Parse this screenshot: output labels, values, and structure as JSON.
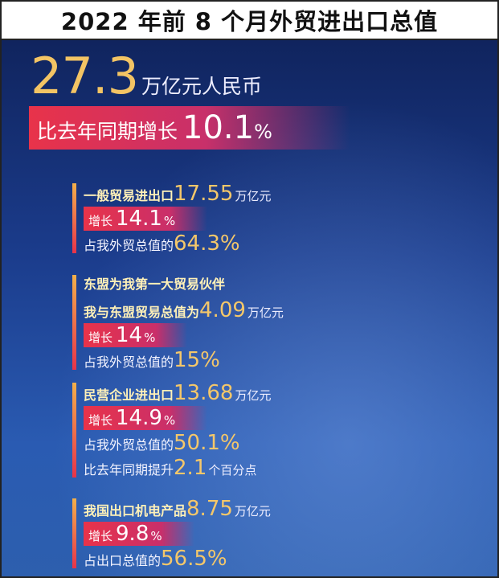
{
  "header": {
    "title": "2022 年前 8 个月外贸进出口总值"
  },
  "total": {
    "value": "27.3",
    "unit": "万亿元人民币",
    "growth_label": "比去年同期增长",
    "growth": "10.1",
    "growth_unit": "%"
  },
  "sections": [
    {
      "lines": [
        [
          "一般贸易进出口",
          "17.55",
          "万亿元"
        ],
        [
          "增长",
          "14.1",
          "%"
        ],
        [
          "占我外贸总值的",
          "64.3%"
        ]
      ]
    },
    {
      "lines": [
        [
          "东盟为我第一大贸易伙伴"
        ],
        [
          "我与东盟贸易总值为",
          "4.09",
          "万亿元"
        ],
        [
          "增长",
          "14",
          "%"
        ],
        [
          "占我外贸总值的",
          "15%"
        ]
      ]
    },
    {
      "lines": [
        [
          "民营企业进出口",
          "13.68",
          "万亿元"
        ],
        [
          "增长",
          "14.9",
          "%"
        ],
        [
          "占我外贸总值的",
          "50.1%"
        ],
        [
          "比去年同期提升",
          "2.1",
          "个百分点"
        ]
      ]
    },
    {
      "lines": [
        [
          "我国出口机电产品",
          "8.75",
          "万亿元"
        ],
        [
          "增长",
          "9.8",
          "%"
        ],
        [
          "占出口总值的",
          "56.5%"
        ]
      ]
    }
  ]
}
